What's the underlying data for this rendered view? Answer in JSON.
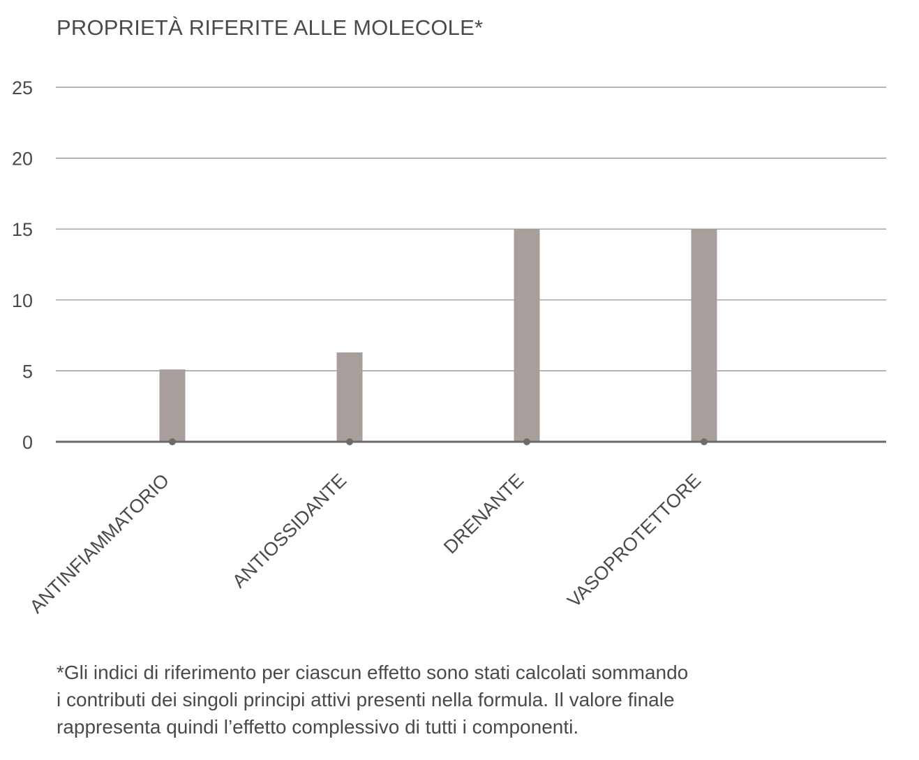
{
  "title": "PROPRIETÀ RIFERITE ALLE MOLECOLE*",
  "footnote": {
    "lines": [
      "*Gli indici di riferimento per ciascun effetto sono stati calcolati sommando",
      "i contributi dei singoli principi attivi presenti nella formula. Il valore finale",
      "rappresenta quindi l’effetto complessivo di tutti i componenti."
    ]
  },
  "colors": {
    "bar": "#a89e9b",
    "gridline": "#8a8a8a",
    "axis": "#6b6b6b",
    "text": "#4a4a4a"
  },
  "chart_data": {
    "type": "bar",
    "title": "PROPRIETÀ RIFERITE ALLE MOLECOLE*",
    "categories": [
      "ANTINFIAMMATORIO",
      "ANTIOSSIDANTE",
      "DRENANTE",
      "VASOPROTETTORE"
    ],
    "values": [
      5.1,
      6.3,
      15,
      15
    ],
    "ylim": [
      0,
      25
    ],
    "yticks": [
      0,
      5,
      10,
      15,
      20,
      25
    ],
    "xlabel": "",
    "ylabel": "",
    "grid": true,
    "legend": "none"
  }
}
